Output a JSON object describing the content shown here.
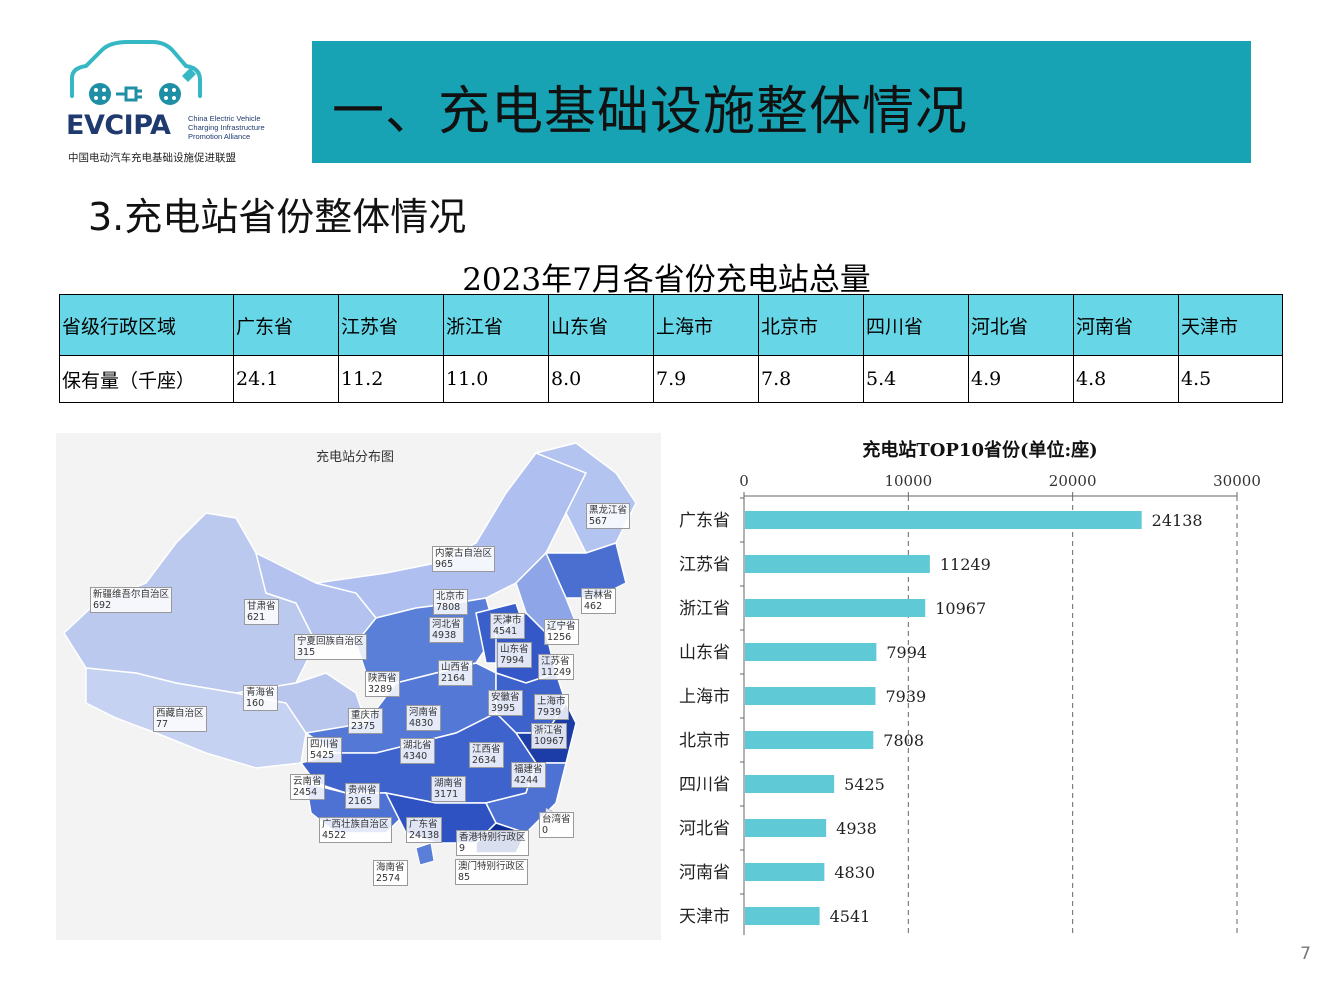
{
  "logo": {
    "abbr": "EVCIPA",
    "en_name": "China Electric Vehicle Charging Infrastructure Promotion Alliance",
    "cn_name": "中国电动汽车充电基础设施促进联盟"
  },
  "banner": {
    "title": "一、充电基础设施整体情况",
    "color": "#17a3b3"
  },
  "section_title": "3.充电站省份整体情况",
  "table": {
    "title": "2023年7月各省份充电站总量",
    "row_labels": [
      "省级行政区域",
      "保有量（千座）"
    ],
    "provinces": [
      "广东省",
      "江苏省",
      "浙江省",
      "山东省",
      "上海市",
      "北京市",
      "四川省",
      "河北省",
      "河南省",
      "天津市"
    ],
    "values": [
      "24.1",
      "11.2",
      "11.0",
      "8.0",
      "7.9",
      "7.8",
      "5.4",
      "4.9",
      "4.8",
      "4.5"
    ],
    "header_color": "#67d6e6"
  },
  "map": {
    "title": "充电站分布图",
    "regions": [
      {
        "name": "黑龙江省",
        "value": "567"
      },
      {
        "name": "内蒙古自治区",
        "value": "965"
      },
      {
        "name": "新疆维吾尔自治区",
        "value": "692"
      },
      {
        "name": "甘肃省",
        "value": "621"
      },
      {
        "name": "北京市",
        "value": "7808"
      },
      {
        "name": "吉林省",
        "value": "462"
      },
      {
        "name": "河北省",
        "value": "4938"
      },
      {
        "name": "天津市",
        "value": "4541"
      },
      {
        "name": "辽宁省",
        "value": "1256"
      },
      {
        "name": "宁夏回族自治区",
        "value": "315"
      },
      {
        "name": "山东省",
        "value": "7994"
      },
      {
        "name": "江苏省",
        "value": "11249"
      },
      {
        "name": "山西省",
        "value": "2164"
      },
      {
        "name": "陕西省",
        "value": "3289"
      },
      {
        "name": "青海省",
        "value": "160"
      },
      {
        "name": "安徽省",
        "value": "3995"
      },
      {
        "name": "上海市",
        "value": "7939"
      },
      {
        "name": "西藏自治区",
        "value": "77"
      },
      {
        "name": "重庆市",
        "value": "2375"
      },
      {
        "name": "河南省",
        "value": "4830"
      },
      {
        "name": "浙江省",
        "value": "10967"
      },
      {
        "name": "四川省",
        "value": "5425"
      },
      {
        "name": "湖北省",
        "value": "4340"
      },
      {
        "name": "江西省",
        "value": "2634"
      },
      {
        "name": "福建省",
        "value": "4244"
      },
      {
        "name": "云南省",
        "value": "2454"
      },
      {
        "name": "贵州省",
        "value": "2165"
      },
      {
        "name": "湖南省",
        "value": "3171"
      },
      {
        "name": "台湾省",
        "value": "0"
      },
      {
        "name": "广西壮族自治区",
        "value": "4522"
      },
      {
        "name": "广东省",
        "value": "24138"
      },
      {
        "name": "香港特别行政区",
        "value": "9"
      },
      {
        "name": "海南省",
        "value": "2574"
      },
      {
        "name": "澳门特别行政区",
        "value": "85"
      }
    ]
  },
  "chart_data": {
    "type": "bar",
    "orientation": "horizontal",
    "title": "充电站TOP10省份(单位:座)",
    "categories": [
      "广东省",
      "江苏省",
      "浙江省",
      "山东省",
      "上海市",
      "北京市",
      "四川省",
      "河北省",
      "河南省",
      "天津市"
    ],
    "values": [
      24138,
      11249,
      10967,
      7994,
      7939,
      7808,
      5425,
      4938,
      4830,
      4541
    ],
    "xlim": [
      0,
      30000
    ],
    "xticks": [
      0,
      10000,
      20000,
      30000
    ],
    "axis_position": "top",
    "grid": "dashed vertical",
    "bar_color": "#5fc9d6"
  },
  "page_number": "7"
}
